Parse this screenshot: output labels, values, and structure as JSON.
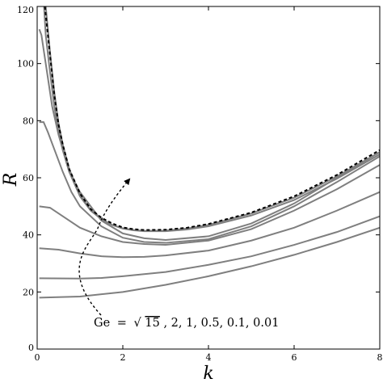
{
  "chart_data": {
    "type": "line",
    "xlabel": "k",
    "ylabel": "R",
    "xlim": [
      0,
      8
    ],
    "ylim": [
      0,
      120
    ],
    "xticks": [
      "0",
      "2",
      "4",
      "6",
      "8"
    ],
    "yticks": [
      "0",
      "20",
      "40",
      "60",
      "80",
      "100",
      "120"
    ],
    "grid": false,
    "legend": "none",
    "annotation": {
      "prefix": "Ge",
      "equals": "=",
      "radical": "√",
      "radicand": "15",
      "rest": ", 2, 1, 0.5, 0.1, 0.01"
    },
    "colors": {
      "curves": "#7f7f7f",
      "limit": "#000000"
    },
    "series": [
      {
        "style": "solid",
        "x": [
          0.05,
          0.1,
          0.2,
          0.35,
          0.5,
          0.75,
          1,
          1.5,
          2,
          2.5,
          3,
          4,
          5,
          6,
          7,
          8
        ],
        "y": [
          112,
          110,
          100,
          85,
          75,
          62,
          55,
          45,
          40.5,
          38.8,
          38.2,
          39.5,
          44,
          51,
          60,
          69
        ]
      },
      {
        "style": "solid",
        "x": [
          0.05,
          0.15,
          0.25,
          0.4,
          0.6,
          0.8,
          1,
          1.5,
          2,
          2.5,
          3,
          4,
          5,
          6,
          7,
          8
        ],
        "y": [
          79.5,
          79.5,
          76,
          70,
          62,
          55,
          50,
          43,
          39,
          37.5,
          37.2,
          38.5,
          43,
          50,
          58.5,
          67.5
        ]
      },
      {
        "style": "solid",
        "x": [
          0.05,
          0.3,
          0.6,
          1,
          1.5,
          2,
          2.5,
          3,
          4,
          5,
          6,
          7,
          8
        ],
        "y": [
          50,
          49.5,
          46.5,
          42.5,
          39.5,
          37.5,
          36.8,
          36.5,
          38,
          42,
          48.5,
          56,
          64.5
        ]
      },
      {
        "style": "solid",
        "x": [
          0.05,
          0.5,
          1,
          1.5,
          2,
          2.5,
          3,
          4,
          5,
          6,
          7,
          8
        ],
        "y": [
          35.3,
          34.8,
          33.5,
          32.5,
          32.2,
          32.3,
          32.8,
          34.5,
          38,
          42.5,
          48.5,
          55
        ]
      },
      {
        "style": "solid",
        "x": [
          0.05,
          1,
          1.5,
          2,
          3,
          4,
          5,
          6,
          7,
          8
        ],
        "y": [
          24.8,
          24.7,
          24.9,
          25.5,
          27,
          29.5,
          32.5,
          36.5,
          41,
          46.5
        ]
      },
      {
        "style": "solid",
        "x": [
          0.05,
          1,
          2,
          3,
          4,
          5,
          6,
          7,
          8
        ],
        "y": [
          18,
          18.4,
          20,
          22.5,
          25.5,
          29,
          33,
          37.5,
          42.5
        ]
      },
      {
        "style": "solid",
        "x": [
          0.16,
          0.2,
          0.3,
          0.4,
          0.5,
          0.6,
          0.75,
          1,
          1.25,
          1.5,
          1.75,
          2,
          2.25,
          2.5,
          3,
          3.5,
          4,
          5,
          6,
          7,
          8
        ],
        "y": [
          120,
          110,
          97,
          85,
          76,
          69.5,
          62,
          53.5,
          48.5,
          45.5,
          43.5,
          42.3,
          41.7,
          41.4,
          41.5,
          42.2,
          43.5,
          47.5,
          53,
          60.5,
          69
        ]
      },
      {
        "style": "solid",
        "x": [
          0.2,
          0.3,
          0.4,
          0.5,
          0.6,
          0.75,
          1,
          1.25,
          1.5,
          1.75,
          2,
          2.25,
          2.5,
          3,
          3.5,
          4,
          5,
          6,
          7,
          8
        ],
        "y": [
          120,
          104,
          90,
          79,
          71.5,
          63,
          54,
          48.7,
          45.5,
          43.5,
          42.2,
          41.6,
          41.3,
          41.3,
          41.9,
          43,
          46.8,
          52.2,
          59.7,
          68.2
        ]
      },
      {
        "style": "dashed",
        "x": [
          0.18,
          0.25,
          0.3,
          0.4,
          0.5,
          0.6,
          0.75,
          1,
          1.25,
          1.5,
          1.75,
          2,
          2.25,
          2.5,
          3,
          3.5,
          4,
          5,
          6,
          7,
          8
        ],
        "y": [
          120,
          110,
          103,
          89,
          78.5,
          71.5,
          63,
          54.5,
          49,
          46,
          44,
          42.6,
          42,
          41.7,
          41.8,
          42.5,
          43.8,
          47.8,
          53.5,
          61,
          69.7
        ]
      }
    ]
  }
}
